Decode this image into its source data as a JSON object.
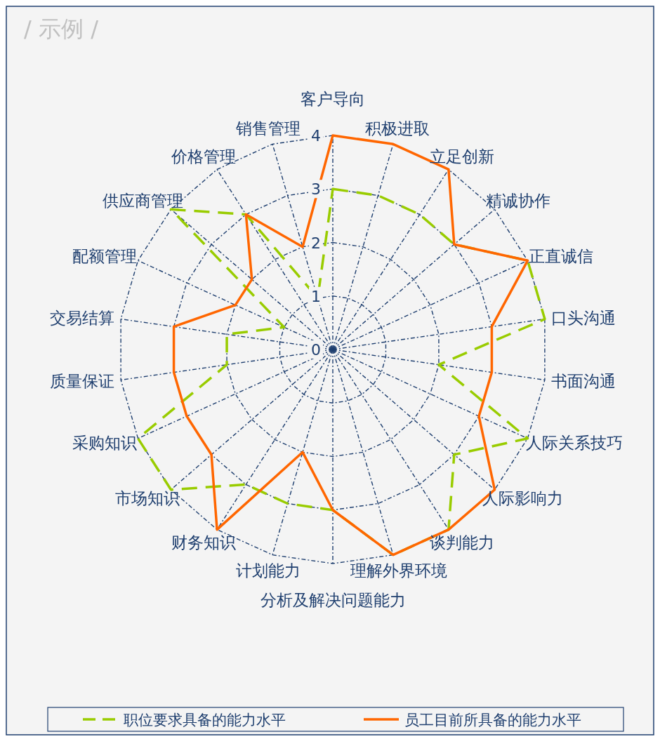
{
  "chart_data": {
    "type": "radar",
    "title": "/ 示例 /",
    "categories": [
      "客户导向",
      "积极进取",
      "立足创新",
      "精诚协作",
      "正直诚信",
      "口头沟通",
      "书面沟通",
      "人际关系技巧",
      "人际影响力",
      "谈判能力",
      "理解外界环境",
      "分析及解决问题能力",
      "计划能力",
      "财务知识",
      "市场知识",
      "采购知识",
      "质量保证",
      "交易结算",
      "配额管理",
      "供应商管理",
      "价格管理",
      "销售管理"
    ],
    "series": [
      {
        "name": "职位要求具备的能力水平",
        "color": "#99cc00",
        "line_style": "dashed",
        "values": [
          3,
          3,
          3,
          3,
          4,
          4,
          2,
          4,
          3,
          4,
          4,
          3,
          3,
          3,
          4,
          4,
          2,
          2,
          1,
          4,
          3,
          1
        ]
      },
      {
        "name": "员工目前所具备的能力水平",
        "color": "#ff6600",
        "line_style": "solid",
        "values": [
          4,
          4,
          4,
          3,
          4,
          3,
          3,
          3,
          4,
          4,
          4,
          3,
          2,
          4,
          3,
          3,
          3,
          3,
          2,
          2,
          3,
          2
        ]
      }
    ],
    "ylim": [
      0,
      4
    ],
    "yticks": [
      0,
      1,
      2,
      3,
      4
    ],
    "grid": true,
    "legend": "bottom",
    "marker": "none"
  }
}
